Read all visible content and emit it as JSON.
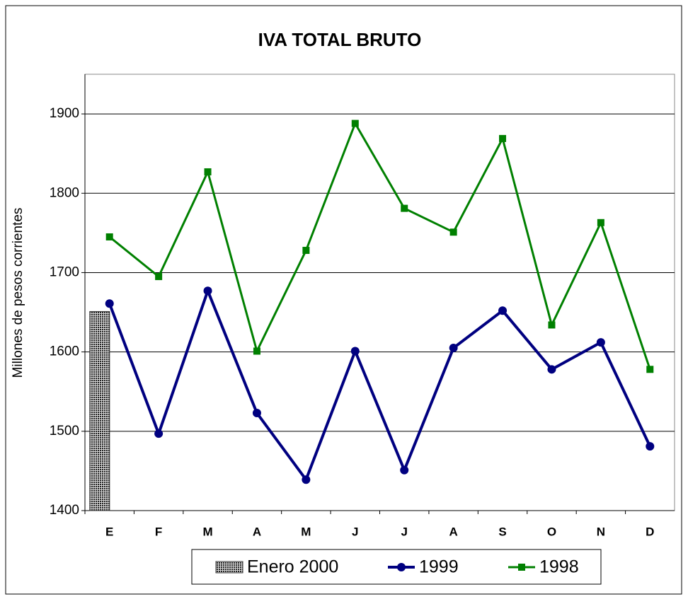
{
  "chart_data": {
    "type": "line",
    "title": "IVA TOTAL BRUTO",
    "ylabel": "Millones de pesos corrientes",
    "categories": [
      "E",
      "F",
      "M",
      "A",
      "M",
      "J",
      "J",
      "A",
      "S",
      "O",
      "N",
      "D"
    ],
    "series": [
      {
        "name": "Enero 2000",
        "type": "bar",
        "color": "#333333",
        "values": [
          1651,
          null,
          null,
          null,
          null,
          null,
          null,
          null,
          null,
          null,
          null,
          null
        ]
      },
      {
        "name": "1999",
        "type": "line",
        "marker": "circle",
        "color": "#000080",
        "values": [
          1661,
          1497,
          1677,
          1523,
          1439,
          1601,
          1451,
          1605,
          1652,
          1578,
          1612,
          1481
        ]
      },
      {
        "name": "1998",
        "type": "line",
        "marker": "square",
        "color": "#008000",
        "values": [
          1745,
          1695,
          1827,
          1601,
          1728,
          1888,
          1781,
          1751,
          1869,
          1634,
          1763,
          1578
        ]
      }
    ],
    "ylim": [
      1400,
      1950
    ],
    "yticks": [
      1400,
      1500,
      1600,
      1700,
      1800,
      1900
    ],
    "grid": true,
    "legend": "bottom"
  }
}
